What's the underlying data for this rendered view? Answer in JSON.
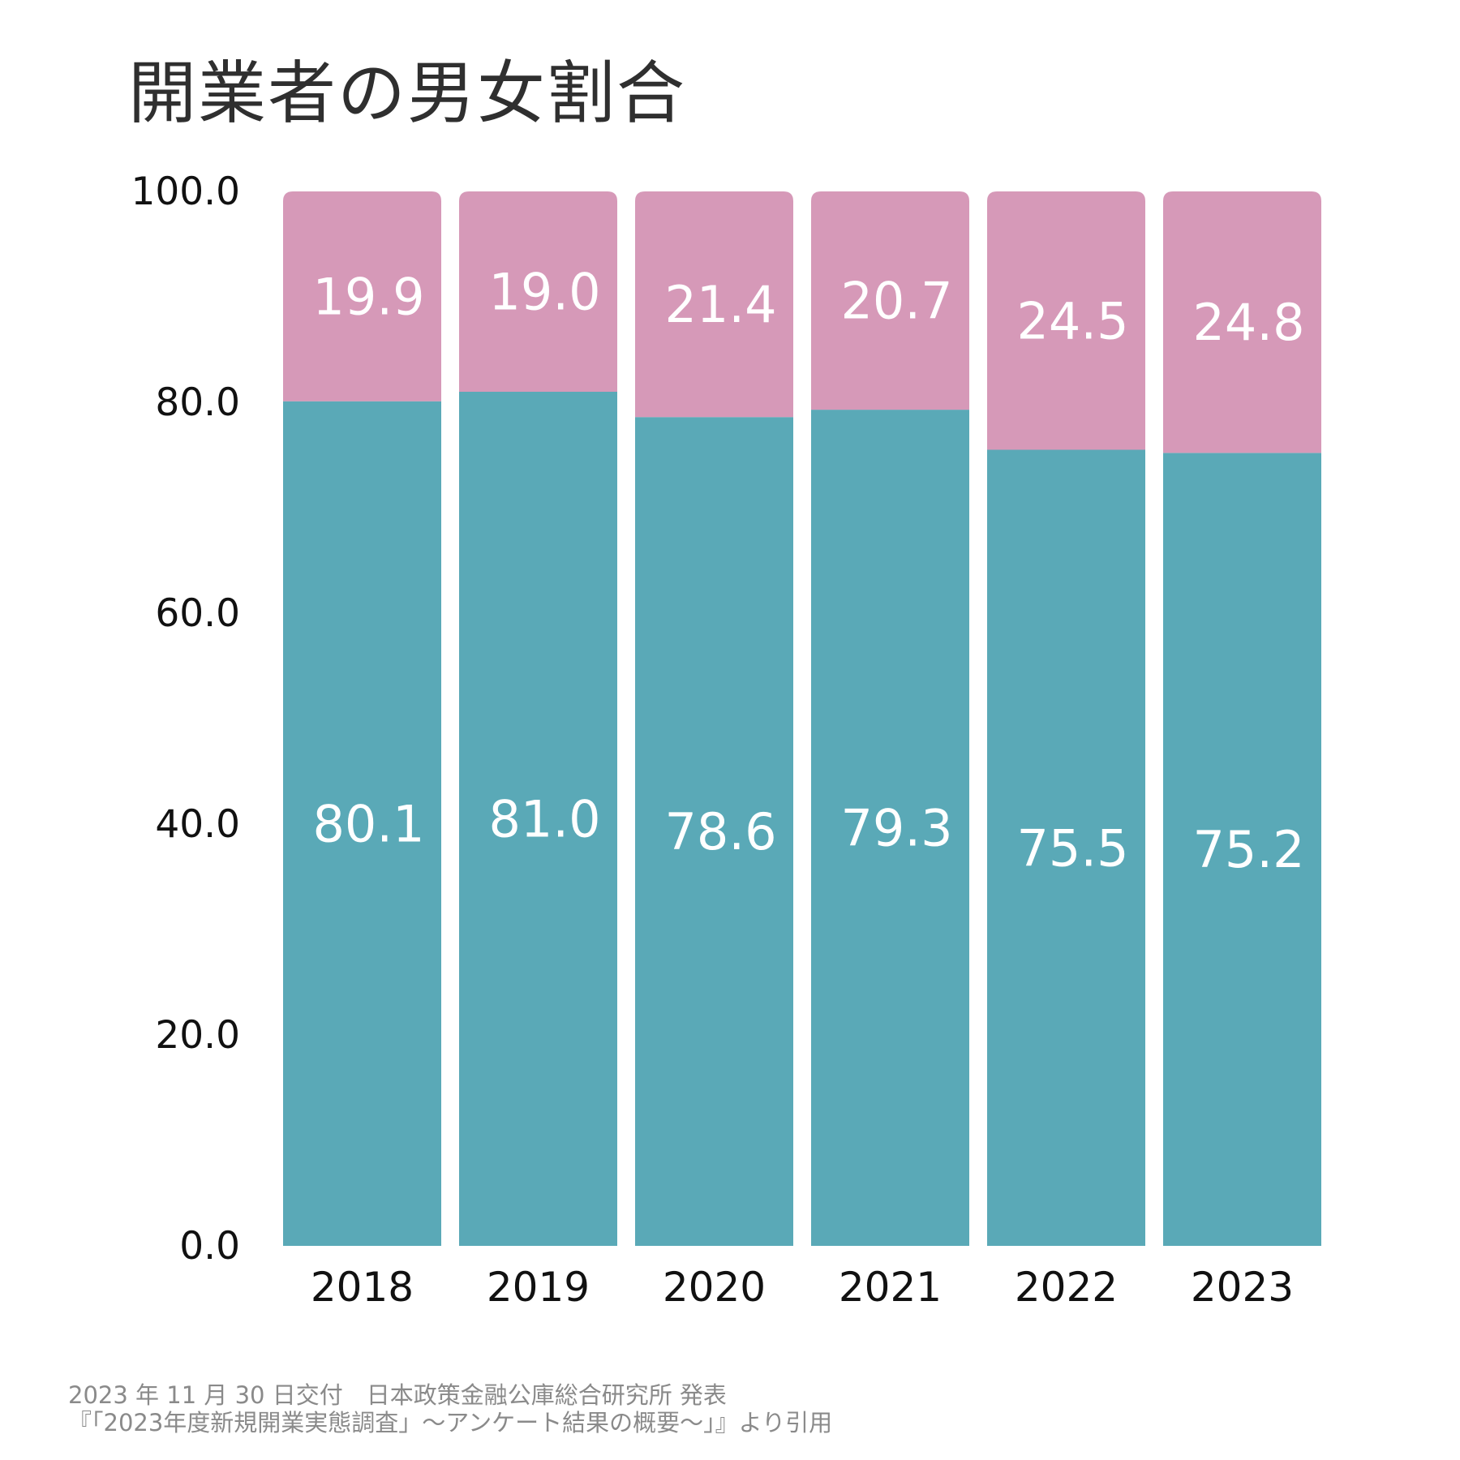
{
  "chart_data": {
    "type": "bar",
    "stacked": true,
    "title": "開業者の男女割合",
    "categories": [
      "2018",
      "2019",
      "2020",
      "2021",
      "2022",
      "2023"
    ],
    "series": [
      {
        "values": [
          80.1,
          81.0,
          78.6,
          79.3,
          75.5,
          75.2
        ]
      },
      {
        "values": [
          19.9,
          19.0,
          21.4,
          20.7,
          24.5,
          24.8
        ]
      }
    ],
    "ylim": [
      0,
      100
    ],
    "yticks": [
      "0.0",
      "20.0",
      "40.0",
      "60.0",
      "80.0",
      "100.0"
    ],
    "grid": false,
    "legend": "none",
    "colors": [
      "#5aa9b7",
      "#d699b8"
    ],
    "value_label_color": "#ffffff"
  },
  "source": {
    "line1": "2023 年 11 月 30 日交付　日本政策金融公庫総合研究所 発表",
    "line2": "『「2023年度新規開業実態調査」～アンケート結果の概要～」』より引用"
  }
}
